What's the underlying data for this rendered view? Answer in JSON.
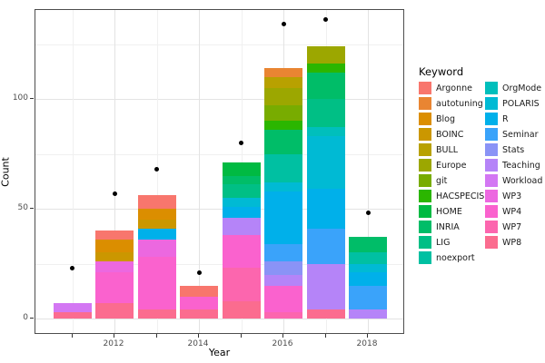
{
  "chart_data": {
    "type": "bar",
    "stacked": true,
    "title": "",
    "xlabel": "Year",
    "ylabel": "Count",
    "legend_title": "Keyword",
    "grid": true,
    "legend_position": "right",
    "ylim": [
      0,
      148
    ],
    "y_ticks": [
      0,
      50,
      100
    ],
    "y_minor_ticks": [
      25,
      75,
      125
    ],
    "years": [
      2011,
      2012,
      2013,
      2014,
      2015,
      2016,
      2017,
      2018
    ],
    "x_labeled_years": [
      2012,
      2014,
      2016,
      2018
    ],
    "keywords": [
      {
        "name": "Argonne",
        "color": "#F8766D"
      },
      {
        "name": "autotuning",
        "color": "#E98532"
      },
      {
        "name": "Blog",
        "color": "#DB8E00"
      },
      {
        "name": "BOINC",
        "color": "#CB9700"
      },
      {
        "name": "BULL",
        "color": "#B8A100"
      },
      {
        "name": "Europe",
        "color": "#9CA700"
      },
      {
        "name": "git",
        "color": "#78AC00"
      },
      {
        "name": "HACSPECIS",
        "color": "#2BB600"
      },
      {
        "name": "HOME",
        "color": "#00BA42"
      },
      {
        "name": "INRIA",
        "color": "#00BD68"
      },
      {
        "name": "LIG",
        "color": "#00BF85"
      },
      {
        "name": "noexport",
        "color": "#00C0A2"
      },
      {
        "name": "OrgMode",
        "color": "#00BFBC"
      },
      {
        "name": "POLARIS",
        "color": "#00BAD4"
      },
      {
        "name": "R",
        "color": "#00B0EA"
      },
      {
        "name": "Seminar",
        "color": "#3AA3FA"
      },
      {
        "name": "Stats",
        "color": "#8A93F6"
      },
      {
        "name": "Teaching",
        "color": "#B584F8"
      },
      {
        "name": "Workload",
        "color": "#D377F3"
      },
      {
        "name": "WP3",
        "color": "#EC68E0"
      },
      {
        "name": "WP4",
        "color": "#FA62CE"
      },
      {
        "name": "WP7",
        "color": "#FC66AE"
      },
      {
        "name": "WP8",
        "color": "#FB6C8F"
      }
    ],
    "bars": [
      {
        "year": 2011,
        "total": 7,
        "segments_bottom_to_top": [
          {
            "keyword": "WP8",
            "value": 3
          },
          {
            "keyword": "Workload",
            "value": 4
          }
        ]
      },
      {
        "year": 2012,
        "total": 40,
        "segments_bottom_to_top": [
          {
            "keyword": "WP8",
            "value": 7
          },
          {
            "keyword": "WP4",
            "value": 14
          },
          {
            "keyword": "WP3",
            "value": 5
          },
          {
            "keyword": "BOINC",
            "value": 4
          },
          {
            "keyword": "Blog",
            "value": 6
          },
          {
            "keyword": "Argonne",
            "value": 4
          }
        ]
      },
      {
        "year": 2013,
        "total": 56,
        "segments_bottom_to_top": [
          {
            "keyword": "WP8",
            "value": 4
          },
          {
            "keyword": "WP4",
            "value": 24
          },
          {
            "keyword": "WP3",
            "value": 8
          },
          {
            "keyword": "R",
            "value": 5
          },
          {
            "keyword": "BOINC",
            "value": 4
          },
          {
            "keyword": "Blog",
            "value": 5
          },
          {
            "keyword": "Argonne",
            "value": 6
          }
        ]
      },
      {
        "year": 2014,
        "total": 15,
        "segments_bottom_to_top": [
          {
            "keyword": "WP8",
            "value": 4
          },
          {
            "keyword": "WP4",
            "value": 6
          },
          {
            "keyword": "Argonne",
            "value": 5
          }
        ]
      },
      {
        "year": 2015,
        "total": 71,
        "segments_bottom_to_top": [
          {
            "keyword": "WP8",
            "value": 8
          },
          {
            "keyword": "WP7",
            "value": 15
          },
          {
            "keyword": "WP4",
            "value": 15
          },
          {
            "keyword": "Teaching",
            "value": 8
          },
          {
            "keyword": "R",
            "value": 5
          },
          {
            "keyword": "POLARIS",
            "value": 4
          },
          {
            "keyword": "LIG",
            "value": 6
          },
          {
            "keyword": "INRIA",
            "value": 4
          },
          {
            "keyword": "HOME",
            "value": 6
          }
        ]
      },
      {
        "year": 2016,
        "total": 114,
        "segments_bottom_to_top": [
          {
            "keyword": "WP7",
            "value": 3
          },
          {
            "keyword": "WP4",
            "value": 12
          },
          {
            "keyword": "Teaching",
            "value": 5
          },
          {
            "keyword": "Stats",
            "value": 6
          },
          {
            "keyword": "Seminar",
            "value": 8
          },
          {
            "keyword": "R",
            "value": 24
          },
          {
            "keyword": "POLARIS",
            "value": 4
          },
          {
            "keyword": "noexport",
            "value": 13
          },
          {
            "keyword": "INRIA",
            "value": 11
          },
          {
            "keyword": "HACSPECIS",
            "value": 4
          },
          {
            "keyword": "git",
            "value": 7
          },
          {
            "keyword": "Europe",
            "value": 8
          },
          {
            "keyword": "BULL",
            "value": 5
          },
          {
            "keyword": "autotuning",
            "value": 4
          }
        ]
      },
      {
        "year": 2017,
        "total": 124,
        "segments_bottom_to_top": [
          {
            "keyword": "WP8",
            "value": 4
          },
          {
            "keyword": "Teaching",
            "value": 21
          },
          {
            "keyword": "Seminar",
            "value": 16
          },
          {
            "keyword": "R",
            "value": 18
          },
          {
            "keyword": "POLARIS",
            "value": 24
          },
          {
            "keyword": "OrgMode",
            "value": 4
          },
          {
            "keyword": "LIG",
            "value": 13
          },
          {
            "keyword": "INRIA",
            "value": 12
          },
          {
            "keyword": "HACSPECIS",
            "value": 4
          },
          {
            "keyword": "Europe",
            "value": 8
          }
        ]
      },
      {
        "year": 2018,
        "total": 37,
        "segments_bottom_to_top": [
          {
            "keyword": "Teaching",
            "value": 4
          },
          {
            "keyword": "Seminar",
            "value": 11
          },
          {
            "keyword": "R",
            "value": 6
          },
          {
            "keyword": "POLARIS",
            "value": 4
          },
          {
            "keyword": "noexport",
            "value": 5
          },
          {
            "keyword": "INRIA",
            "value": 7
          }
        ]
      }
    ],
    "points": [
      {
        "year": 2011,
        "value": 23
      },
      {
        "year": 2012,
        "value": 57
      },
      {
        "year": 2013,
        "value": 68
      },
      {
        "year": 2014,
        "value": 21
      },
      {
        "year": 2015,
        "value": 80
      },
      {
        "year": 2016,
        "value": 134
      },
      {
        "year": 2017,
        "value": 136
      },
      {
        "year": 2018,
        "value": 48
      }
    ],
    "legend_columns": [
      [
        "Argonne",
        "autotuning",
        "Blog",
        "BOINC",
        "BULL",
        "Europe",
        "git",
        "HACSPECIS",
        "HOME",
        "INRIA",
        "LIG",
        "noexport"
      ],
      [
        "OrgMode",
        "POLARIS",
        "R",
        "Seminar",
        "Stats",
        "Teaching",
        "Workload",
        "WP3",
        "WP4",
        "WP7",
        "WP8"
      ]
    ]
  }
}
